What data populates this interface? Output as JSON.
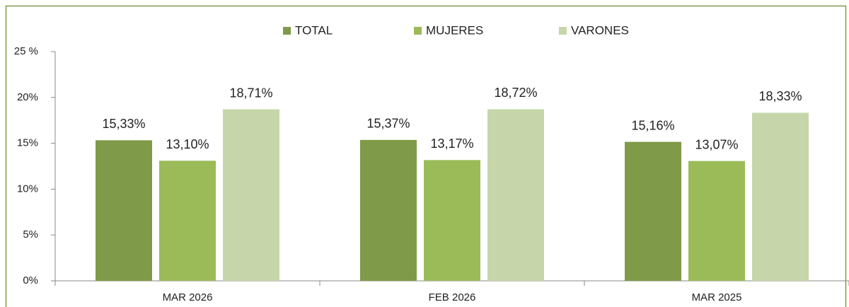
{
  "chart_data": {
    "type": "bar",
    "categories": [
      "MAR 2026",
      "FEB 2026",
      "MAR 2025"
    ],
    "series": [
      {
        "name": "TOTAL",
        "color": "#7f9a48",
        "values": [
          15.33,
          15.37,
          15.16
        ],
        "value_labels": [
          "15,33%",
          "15,37%",
          "15,16%"
        ]
      },
      {
        "name": "MUJERES",
        "color": "#9bbb59",
        "values": [
          13.1,
          13.17,
          13.07
        ],
        "value_labels": [
          "13,10%",
          "13,17%",
          "13,07%"
        ]
      },
      {
        "name": "VARONES",
        "color": "#c6d6aa",
        "values": [
          18.71,
          18.72,
          18.33
        ],
        "value_labels": [
          "18,71%",
          "18,72%",
          "18,33%"
        ]
      }
    ],
    "ylim": [
      0,
      25
    ],
    "yticks": [
      {
        "value": 0,
        "label": "0%"
      },
      {
        "value": 5,
        "label": "5%"
      },
      {
        "value": 10,
        "label": "10%"
      },
      {
        "value": 15,
        "label": "15%"
      },
      {
        "value": 20,
        "label": "20%"
      },
      {
        "value": 25,
        "label": "25 %"
      }
    ],
    "legend": "top"
  }
}
